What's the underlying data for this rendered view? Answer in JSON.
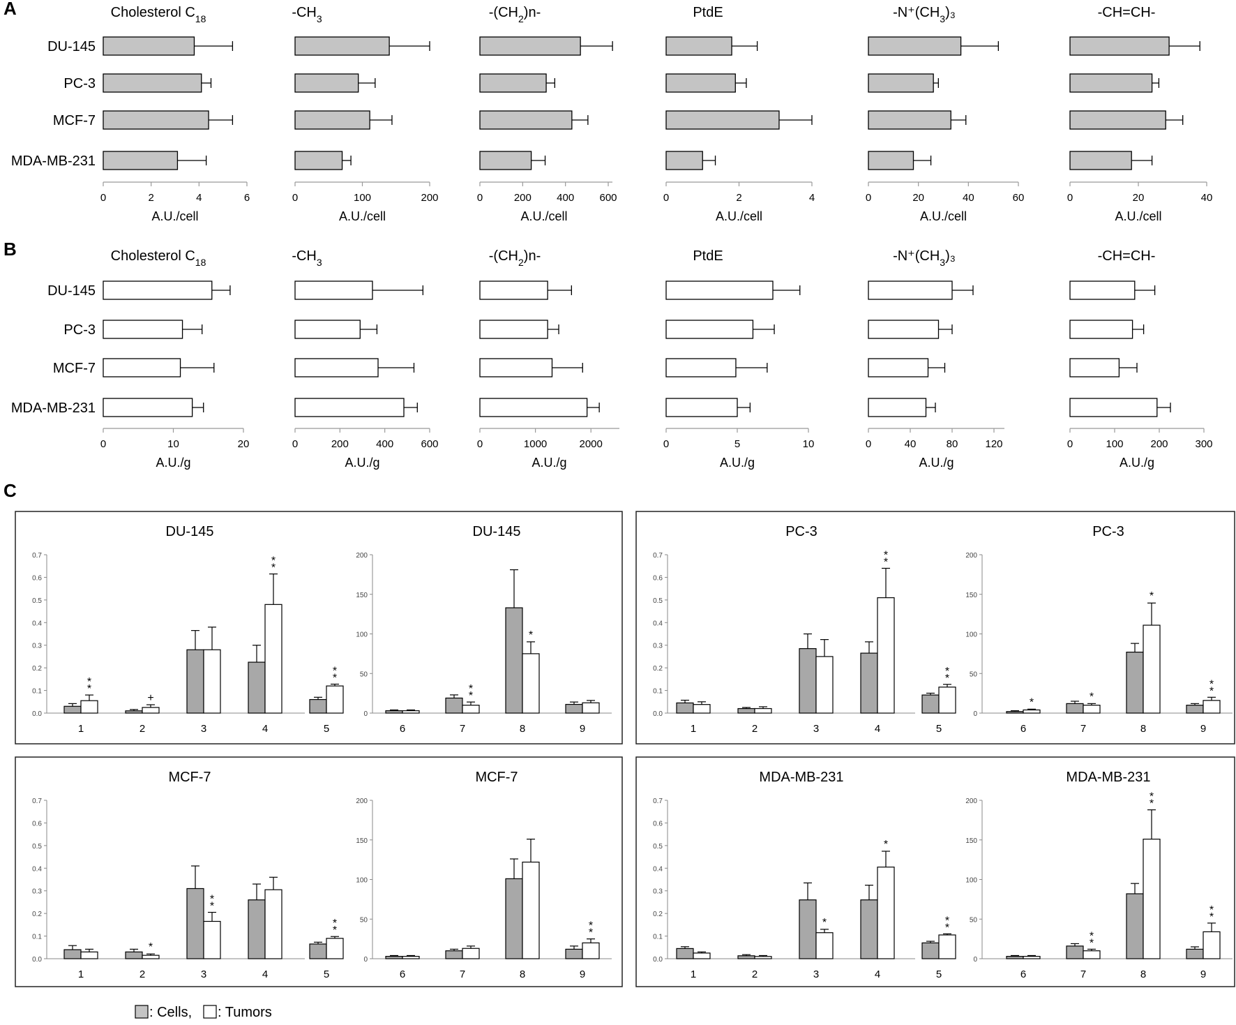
{
  "panel_labels": [
    "A",
    "B",
    "C"
  ],
  "legend": {
    "cells_label": ": Cells,",
    "tumors_label": ": Tumors",
    "cells_color": "#c4c4c4",
    "tumors_color": "#ffffff"
  },
  "chart_data": [
    {
      "type": "bar",
      "id": "A",
      "orientation": "horizontal",
      "categories": [
        "DU-145",
        "PC-3",
        "MCF-7",
        "MDA-MB-231"
      ],
      "color": "#c4c4c4",
      "xlabel": "A.U./cell",
      "subplots": [
        {
          "title_parts": [
            "Cholesterol C",
            "18",
            ""
          ],
          "xlim": [
            0,
            6
          ],
          "ticks": [
            0,
            2,
            4,
            6
          ],
          "values": [
            3.8,
            4.1,
            4.4,
            3.1
          ],
          "errors": [
            1.6,
            0.4,
            1.0,
            1.2
          ]
        },
        {
          "title_parts": [
            "-CH",
            "3",
            ""
          ],
          "xlim": [
            0,
            200
          ],
          "ticks": [
            0,
            100,
            200
          ],
          "values": [
            140,
            94,
            111,
            70
          ],
          "errors": [
            60,
            25,
            33,
            13
          ]
        },
        {
          "title_parts": [
            "-(CH",
            "2",
            ")n-"
          ],
          "xlim": [
            0,
            600
          ],
          "ticks": [
            0,
            200,
            400,
            600
          ],
          "values": [
            470,
            310,
            430,
            240
          ],
          "errors": [
            150,
            40,
            75,
            65
          ]
        },
        {
          "title_parts": [
            "PtdE",
            "",
            ""
          ],
          "xlim": [
            0,
            4
          ],
          "ticks": [
            0,
            2,
            4
          ],
          "values": [
            1.8,
            1.9,
            3.1,
            1.0
          ],
          "errors": [
            0.7,
            0.3,
            0.9,
            0.35
          ]
        },
        {
          "title_parts": [
            "-N⁺(CH",
            "3",
            ")₃"
          ],
          "xlim": [
            0,
            60
          ],
          "ticks": [
            0,
            20,
            40,
            60
          ],
          "values": [
            37,
            26,
            33,
            18
          ],
          "errors": [
            15,
            2,
            6,
            7
          ]
        },
        {
          "title_parts": [
            "-CH=CH-",
            "",
            ""
          ],
          "xlim": [
            0,
            40
          ],
          "ticks": [
            0,
            20,
            40
          ],
          "values": [
            29,
            24,
            28,
            18
          ],
          "errors": [
            9,
            2,
            5,
            6
          ]
        }
      ]
    },
    {
      "type": "bar",
      "id": "B",
      "orientation": "horizontal",
      "categories": [
        "DU-145",
        "PC-3",
        "MCF-7",
        "MDA-MB-231"
      ],
      "color": "#ffffff",
      "xlabel": "A.U./g",
      "subplots": [
        {
          "title_parts": [
            "Cholesterol C",
            "18",
            ""
          ],
          "xlim": [
            0,
            20
          ],
          "ticks": [
            0,
            10,
            20
          ],
          "values": [
            15.5,
            11.3,
            11.0,
            12.7
          ],
          "errors": [
            2.6,
            2.8,
            4.8,
            1.6
          ]
        },
        {
          "title_parts": [
            "-CH",
            "3",
            ""
          ],
          "xlim": [
            0,
            600
          ],
          "ticks": [
            0,
            200,
            400,
            600
          ],
          "values": [
            345,
            290,
            370,
            485
          ],
          "errors": [
            225,
            75,
            160,
            60
          ]
        },
        {
          "title_parts": [
            "-(CH",
            "2",
            ")n-"
          ],
          "xlim": [
            0,
            2500
          ],
          "ticks": [
            0,
            1000,
            2000
          ],
          "values": [
            1220,
            1220,
            1300,
            1930
          ],
          "errors": [
            430,
            200,
            550,
            220
          ]
        },
        {
          "title_parts": [
            "PtdE",
            "",
            ""
          ],
          "xlim": [
            0,
            10
          ],
          "ticks": [
            0,
            5,
            10
          ],
          "values": [
            7.5,
            6.1,
            4.9,
            5.0
          ],
          "errors": [
            1.9,
            1.5,
            2.2,
            0.9
          ]
        },
        {
          "title_parts": [
            "-N⁺(CH",
            "3",
            ")₃"
          ],
          "xlim": [
            0,
            130
          ],
          "ticks": [
            0,
            40,
            80,
            120
          ],
          "values": [
            80,
            67,
            57,
            55
          ],
          "errors": [
            20,
            13,
            16,
            9
          ]
        },
        {
          "title_parts": [
            "-CH=CH-",
            "",
            ""
          ],
          "xlim": [
            0,
            300
          ],
          "ticks": [
            0,
            100,
            200,
            300
          ],
          "values": [
            145,
            140,
            110,
            195
          ],
          "errors": [
            45,
            25,
            40,
            30
          ]
        }
      ]
    },
    {
      "type": "bar",
      "id": "C",
      "orientation": "vertical",
      "series_names": [
        "Cells",
        "Tumors"
      ],
      "groups": [
        {
          "name": "DU-145",
          "left": {
            "title": "DU-145",
            "ylim": [
              0,
              0.7
            ],
            "ticks": [
              "0.0",
              "0.1",
              "0.2",
              "0.3",
              "0.4",
              "0.5",
              "0.6",
              "0.7"
            ],
            "categories": [
              "1",
              "2",
              "3",
              "4",
              "5"
            ],
            "cells": [
              0.03,
              0.01,
              0.28,
              0.225,
              0.06
            ],
            "cells_err": [
              0.012,
              0.006,
              0.085,
              0.075,
              0.01
            ],
            "tumors": [
              0.055,
              0.025,
              0.28,
              0.48,
              0.12
            ],
            "tumors_err": [
              0.025,
              0.012,
              0.1,
              0.135,
              0.008
            ],
            "marks": [
              "**",
              "+",
              "",
              "**",
              "**"
            ]
          },
          "right": {
            "title": "DU-145",
            "ylim": [
              0,
              200
            ],
            "ticks": [
              "0",
              "50",
              "100",
              "150",
              "200"
            ],
            "categories": [
              "6",
              "7",
              "8",
              "9"
            ],
            "cells": [
              3,
              19,
              133,
              11
            ],
            "cells_err": [
              1,
              4,
              48,
              3
            ],
            "tumors": [
              3,
              10,
              75,
              13
            ],
            "tumors_err": [
              1,
              4,
              15,
              3
            ],
            "marks": [
              "",
              "**",
              "*",
              ""
            ]
          }
        },
        {
          "name": "PC-3",
          "left": {
            "title": "PC-3",
            "ylim": [
              0,
              0.7
            ],
            "ticks": [
              "0.0",
              "0.1",
              "0.2",
              "0.3",
              "0.4",
              "0.5",
              "0.6",
              "0.7"
            ],
            "categories": [
              "1",
              "2",
              "3",
              "4",
              "5"
            ],
            "cells": [
              0.045,
              0.02,
              0.285,
              0.265,
              0.08
            ],
            "cells_err": [
              0.012,
              0.005,
              0.065,
              0.05,
              0.008
            ],
            "tumors": [
              0.038,
              0.02,
              0.25,
              0.51,
              0.115
            ],
            "tumors_err": [
              0.012,
              0.008,
              0.075,
              0.13,
              0.012
            ],
            "marks": [
              "",
              "",
              "",
              "**",
              "**"
            ]
          },
          "right": {
            "title": "PC-3",
            "ylim": [
              0,
              200
            ],
            "ticks": [
              "0",
              "50",
              "100",
              "150",
              "200"
            ],
            "categories": [
              "6",
              "7",
              "8",
              "9"
            ],
            "cells": [
              2,
              12,
              77,
              10
            ],
            "cells_err": [
              1,
              3,
              11,
              2
            ],
            "tumors": [
              4,
              10,
              111,
              16
            ],
            "tumors_err": [
              1,
              2,
              28,
              4
            ],
            "marks": [
              "*",
              "*",
              "*",
              "**"
            ]
          }
        },
        {
          "name": "MCF-7",
          "left": {
            "title": "MCF-7",
            "ylim": [
              0,
              0.7
            ],
            "ticks": [
              "0.0",
              "0.1",
              "0.2",
              "0.3",
              "0.4",
              "0.5",
              "0.6",
              "0.7"
            ],
            "categories": [
              "1",
              "2",
              "3",
              "4",
              "5"
            ],
            "cells": [
              0.04,
              0.03,
              0.31,
              0.26,
              0.065
            ],
            "cells_err": [
              0.018,
              0.012,
              0.1,
              0.07,
              0.008
            ],
            "tumors": [
              0.03,
              0.015,
              0.165,
              0.305,
              0.09
            ],
            "tumors_err": [
              0.012,
              0.006,
              0.04,
              0.055,
              0.008
            ],
            "marks": [
              "",
              "*",
              "**",
              "",
              "**"
            ]
          },
          "right": {
            "title": "MCF-7",
            "ylim": [
              0,
              200
            ],
            "ticks": [
              "0",
              "50",
              "100",
              "150",
              "200"
            ],
            "categories": [
              "6",
              "7",
              "8",
              "9"
            ],
            "cells": [
              3,
              10,
              101,
              12
            ],
            "cells_err": [
              1,
              2,
              25,
              4
            ],
            "tumors": [
              3,
              13,
              122,
              20
            ],
            "tumors_err": [
              1,
              3,
              29,
              5
            ],
            "marks": [
              "",
              "",
              "",
              "**"
            ]
          }
        },
        {
          "name": "MDA-MB-231",
          "left": {
            "title": "MDA-MB-231",
            "ylim": [
              0,
              0.7
            ],
            "ticks": [
              "0.0",
              "0.1",
              "0.2",
              "0.3",
              "0.4",
              "0.5",
              "0.6",
              "0.7"
            ],
            "categories": [
              "1",
              "2",
              "3",
              "4",
              "5"
            ],
            "cells": [
              0.045,
              0.013,
              0.26,
              0.26,
              0.07
            ],
            "cells_err": [
              0.008,
              0.005,
              0.075,
              0.065,
              0.007
            ],
            "tumors": [
              0.025,
              0.01,
              0.115,
              0.405,
              0.105
            ],
            "tumors_err": [
              0.005,
              0.004,
              0.015,
              0.07,
              0.005
            ],
            "marks": [
              "",
              "",
              "*",
              "*",
              "**"
            ]
          },
          "right": {
            "title": "MDA-MB-231",
            "ylim": [
              0,
              200
            ],
            "ticks": [
              "0",
              "50",
              "100",
              "150",
              "200"
            ],
            "categories": [
              "6",
              "7",
              "8",
              "9"
            ],
            "cells": [
              3,
              16,
              82,
              12
            ],
            "cells_err": [
              1,
              3,
              13,
              3
            ],
            "tumors": [
              3,
              10,
              151,
              34
            ],
            "tumors_err": [
              1,
              2,
              37,
              11
            ],
            "marks": [
              "",
              "**",
              "**",
              "**"
            ]
          }
        }
      ]
    }
  ]
}
